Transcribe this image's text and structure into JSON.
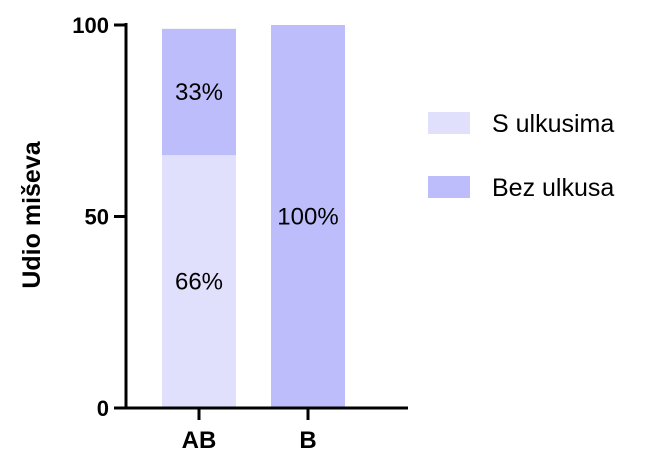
{
  "chart_data": {
    "type": "bar",
    "stacked": true,
    "categories": [
      "AB",
      "B"
    ],
    "series": [
      {
        "name": "S ulkusima",
        "values": [
          66,
          0
        ],
        "labels": [
          "66%",
          ""
        ],
        "color": "#e0e0fc"
      },
      {
        "name": "Bez ulkusa",
        "values": [
          33,
          100
        ],
        "labels": [
          "33%",
          "100%"
        ],
        "color": "#bdbdfb"
      }
    ],
    "title": "",
    "xlabel": "",
    "ylabel": "Udio miševa",
    "ylim": [
      0,
      100
    ],
    "yticks": [
      0,
      50,
      100
    ],
    "grid": false,
    "legend": "right"
  }
}
